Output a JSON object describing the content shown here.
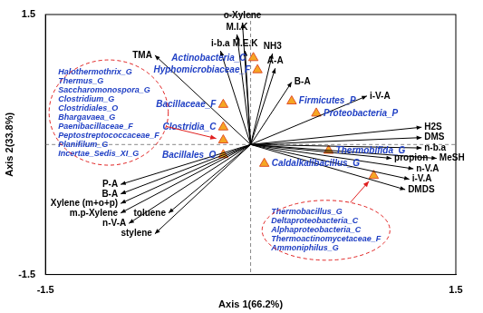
{
  "chart_data": {
    "type": "biplot",
    "xlabel": "Axis 1(66.2%)",
    "ylabel": "Axis 2(33.8%)",
    "xlim": [
      -1.5,
      1.5
    ],
    "ylim": [
      -1.5,
      1.5
    ],
    "xticks": [
      -1.5,
      1.5
    ],
    "yticks": [
      -1.5,
      1.5
    ],
    "grid": false,
    "series": [
      {
        "type": "vector",
        "color": "#000000",
        "marker": "arrow",
        "values": [
          {
            "label": "o-Xylene",
            "x": -0.06,
            "y": 1.4
          },
          {
            "label": "M.I.K",
            "x": -0.1,
            "y": 1.27
          },
          {
            "label": "i-b.a",
            "x": -0.22,
            "y": 1.08
          },
          {
            "label": "M.E.K",
            "x": -0.04,
            "y": 1.08
          },
          {
            "label": "NH3",
            "x": 0.16,
            "y": 1.05
          },
          {
            "label": "A-A",
            "x": 0.18,
            "y": 0.88
          },
          {
            "label": "B-A",
            "x": 0.3,
            "y": 0.72
          },
          {
            "label": "i-V-A",
            "x": 0.85,
            "y": 0.56
          },
          {
            "label": "TMA",
            "x": -0.7,
            "y": 1.03
          },
          {
            "label": "H2S",
            "x": 1.25,
            "y": 0.2
          },
          {
            "label": "DMS",
            "x": 1.25,
            "y": 0.08
          },
          {
            "label": "n-b.a",
            "x": 1.25,
            "y": -0.04
          },
          {
            "label": "propion",
            "x": 1.03,
            "y": -0.16
          },
          {
            "label": "MeSH",
            "x": 1.36,
            "y": -0.16
          },
          {
            "label": "n-V.A",
            "x": 1.19,
            "y": -0.28
          },
          {
            "label": "i-V.A",
            "x": 1.16,
            "y": -0.4
          },
          {
            "label": "DMDS",
            "x": 1.13,
            "y": -0.52
          },
          {
            "label": "P-A",
            "x": -0.95,
            "y": -0.46
          },
          {
            "label": "B-A",
            "x": -0.95,
            "y": -0.57
          },
          {
            "label": "Xylene (m+o+p)",
            "x": -0.95,
            "y": -0.68
          },
          {
            "label": "m.p-Xylene",
            "x": -0.95,
            "y": -0.79
          },
          {
            "label": "toluene",
            "x": -0.6,
            "y": -0.79
          },
          {
            "label": "n-V-A",
            "x": -0.89,
            "y": -0.91
          },
          {
            "label": "stylene",
            "x": -0.7,
            "y": -1.03
          }
        ]
      },
      {
        "type": "scatter",
        "color": "#f5a623",
        "marker": "triangle",
        "values": [
          {
            "label": "Actinobacteria_C",
            "x": 0.02,
            "y": 1.0
          },
          {
            "label": "Hyphomicrobiaceae_F",
            "x": 0.05,
            "y": 0.86
          },
          {
            "label": "Firmicutes_P",
            "x": 0.3,
            "y": 0.5
          },
          {
            "label": "Proteobacteria_P",
            "x": 0.48,
            "y": 0.36
          },
          {
            "label": "Bacillaceae_F",
            "x": -0.2,
            "y": 0.46
          },
          {
            "label": "Clostridia_C",
            "x": -0.2,
            "y": 0.2
          },
          {
            "labels": [
              "Halothermothrix_G",
              "Thermus_G",
              "Saccharomonospora_G",
              "Clostridium_G",
              "Clostridiales_O",
              "Bhargavaea_G",
              "Paenibacillaceae_F",
              "Peptostreptococcaceae_F",
              "Planifilum_G",
              "Incertae_Sedis_XI_G"
            ],
            "x": -0.2,
            "y": 0.05
          },
          {
            "label": "Bacillales_O",
            "x": -0.2,
            "y": -0.12
          },
          {
            "label": "Caldalkalibacillus_G",
            "x": 0.1,
            "y": -0.22
          },
          {
            "label": "Thermobifida_G",
            "x": 0.57,
            "y": -0.07
          },
          {
            "labels": [
              "Thermobacillus_G",
              "Deltaproteobacteria_C",
              "Alphaproteobacteria_C",
              "Thermoactinomycetaceae_F",
              "Ammoniphilus_G"
            ],
            "x": 0.9,
            "y": -0.36
          }
        ]
      }
    ]
  }
}
